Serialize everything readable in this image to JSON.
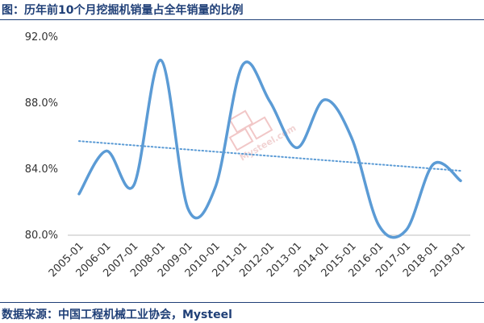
{
  "title": "图：历年前10个月挖掘机销量占全年销量的比例",
  "source": "数据来源：中国工程机械工业协会，Mysteel",
  "watermark": "Mysteel.com",
  "colors": {
    "line": "#5b9bd5",
    "trend": "#5b9bd5",
    "header": "#1f3f77"
  },
  "chart_data": {
    "type": "line",
    "title": "图：历年前10个月挖掘机销量占全年销量的比例",
    "xlabel": "",
    "ylabel": "",
    "ylim": [
      80,
      92
    ],
    "yticks": [
      "80.0%",
      "84.0%",
      "88.0%",
      "92.0%"
    ],
    "yticks_values": [
      80,
      84,
      88,
      92
    ],
    "categories": [
      "2005-01",
      "2006-01",
      "2007-01",
      "2008-01",
      "2009-01",
      "2010-01",
      "2011-01",
      "2012-01",
      "2013-01",
      "2014-01",
      "2015-01",
      "2016-01",
      "2017-01",
      "2018-01",
      "2019-01"
    ],
    "series": [
      {
        "values": [
          82.5,
          85.1,
          83.0,
          90.6,
          81.6,
          82.9,
          90.3,
          88.1,
          85.3,
          88.2,
          85.9,
          80.6,
          80.3,
          84.3,
          83.3
        ],
        "smooth": true,
        "style": "solid"
      }
    ],
    "trendline": {
      "style": "dotted",
      "start": 85.7,
      "end": 83.9
    },
    "grid": false,
    "legend": "none"
  }
}
